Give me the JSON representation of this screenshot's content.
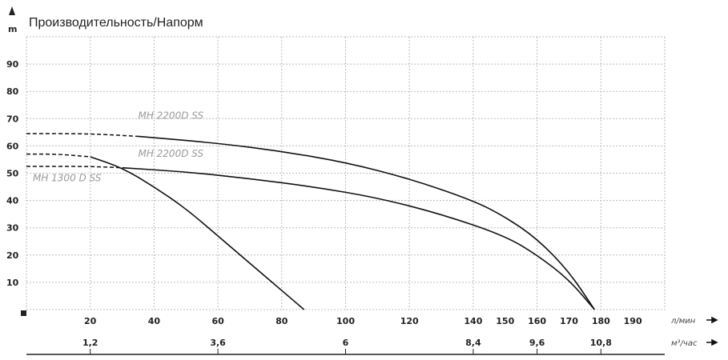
{
  "chart_data": {
    "type": "line",
    "title": "Производительность/Напорм",
    "ylabel": "m",
    "xlabel": "л/мин",
    "x2label": "м³/час",
    "xlim": [
      0,
      200
    ],
    "ylim": [
      0,
      100
    ],
    "grid": true,
    "yticks": [
      "10",
      "20",
      "30",
      "40",
      "50",
      "60",
      "70",
      "80",
      "90"
    ],
    "xticks": [
      "20",
      "40",
      "60",
      "80",
      "100",
      "120",
      "140",
      "150",
      "160",
      "170",
      "180",
      "190"
    ],
    "x2ticks": [
      {
        "x": 20,
        "label": "1,2"
      },
      {
        "x": 60,
        "label": "3,6"
      },
      {
        "x": 100,
        "label": "6"
      },
      {
        "x": 140,
        "label": "8,4"
      },
      {
        "x": 160,
        "label": "9,6"
      },
      {
        "x": 180,
        "label": "10,8"
      }
    ],
    "series": [
      {
        "name": "MH 2200D SS",
        "dashed_until": 35,
        "label_at": [
          35,
          70
        ],
        "x": [
          0,
          20,
          35,
          60,
          80,
          100,
          120,
          140,
          150,
          160,
          170,
          178
        ],
        "y": [
          64.5,
          64.5,
          63.5,
          61,
          58,
          54,
          48,
          40,
          34,
          26,
          14,
          0
        ]
      },
      {
        "name": "MH 2200D SS",
        "dashed_until": 30,
        "label_at": [
          35,
          56
        ],
        "x": [
          0,
          20,
          30,
          50,
          70,
          90,
          110,
          130,
          150,
          160,
          170,
          178
        ],
        "y": [
          52.5,
          52.5,
          52,
          50.5,
          48,
          45,
          41,
          35,
          27,
          20,
          11,
          0
        ]
      },
      {
        "name": "MH 1300 D SS",
        "dashed_until": 20,
        "label_at": [
          2,
          47
        ],
        "x": [
          0,
          10,
          20,
          30,
          40,
          50,
          60,
          70,
          80,
          87
        ],
        "y": [
          57,
          57,
          56,
          52,
          45,
          37,
          27,
          17,
          7,
          0
        ]
      }
    ]
  }
}
